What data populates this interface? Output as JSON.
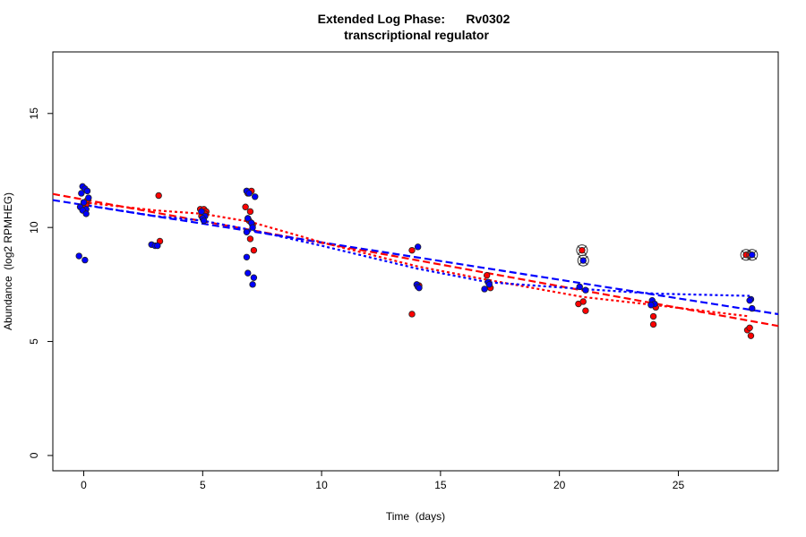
{
  "chart_data": {
    "type": "scatter",
    "title": "Extended Log Phase:      Rv0302",
    "subtitle": "transcriptional regulator",
    "xlabel": "Time  (days)",
    "ylabel": "Abundance  (log2 RPMHEG)",
    "xlim": [
      -1.3,
      29.2
    ],
    "ylim": [
      -0.67,
      17.7
    ],
    "xticks": [
      0,
      5,
      10,
      15,
      20,
      25
    ],
    "yticks": [
      0,
      5,
      10,
      15
    ],
    "grid": false,
    "colors": {
      "red": "#ff0000",
      "blue": "#0000ff"
    },
    "series": [
      {
        "color": "red",
        "points": [
          [
            0.0,
            11.1
          ],
          [
            0.1,
            11.0
          ],
          [
            -0.05,
            10.9
          ],
          [
            0.15,
            11.2
          ],
          [
            3.15,
            11.4
          ],
          [
            3.2,
            9.4
          ],
          [
            4.9,
            10.8
          ],
          [
            5.05,
            10.8
          ],
          [
            5.15,
            10.7
          ],
          [
            4.95,
            10.5
          ],
          [
            5.1,
            10.6
          ],
          [
            6.85,
            11.6
          ],
          [
            7.05,
            11.6
          ],
          [
            6.9,
            11.5
          ],
          [
            6.8,
            10.9
          ],
          [
            7.0,
            10.7
          ],
          [
            6.9,
            10.4
          ],
          [
            7.1,
            10.1
          ],
          [
            7.0,
            9.5
          ],
          [
            7.15,
            9.0
          ],
          [
            6.95,
            10.3
          ],
          [
            13.8,
            9.0
          ],
          [
            14.1,
            7.45
          ],
          [
            13.8,
            6.2
          ],
          [
            16.95,
            7.9
          ],
          [
            17.1,
            7.35
          ],
          [
            20.95,
            9.0
          ],
          [
            20.8,
            6.65
          ],
          [
            21.0,
            6.75
          ],
          [
            21.1,
            6.35
          ],
          [
            24.05,
            6.5
          ],
          [
            23.95,
            6.1
          ],
          [
            23.95,
            5.75
          ],
          [
            27.85,
            8.8
          ],
          [
            27.9,
            5.5
          ],
          [
            28.0,
            5.6
          ],
          [
            28.05,
            5.25
          ]
        ],
        "circled": [
          [
            20.95,
            9.0
          ],
          [
            27.85,
            8.8
          ]
        ]
      },
      {
        "color": "blue",
        "points": [
          [
            -0.05,
            11.8
          ],
          [
            0.05,
            11.7
          ],
          [
            -0.1,
            11.5
          ],
          [
            0.15,
            11.6
          ],
          [
            0.2,
            11.3
          ],
          [
            0.0,
            11.1
          ],
          [
            -0.15,
            10.9
          ],
          [
            0.1,
            10.8
          ],
          [
            -0.05,
            10.75
          ],
          [
            0.1,
            10.6
          ],
          [
            -0.2,
            8.75
          ],
          [
            0.05,
            8.57
          ],
          [
            2.85,
            9.25
          ],
          [
            3.0,
            9.2
          ],
          [
            3.1,
            9.2
          ],
          [
            4.95,
            10.7
          ],
          [
            5.1,
            10.5
          ],
          [
            5.0,
            10.4
          ],
          [
            5.05,
            10.3
          ],
          [
            6.85,
            11.6
          ],
          [
            6.95,
            11.5
          ],
          [
            7.2,
            11.35
          ],
          [
            6.9,
            10.4
          ],
          [
            7.05,
            10.2
          ],
          [
            7.1,
            10.0
          ],
          [
            6.85,
            9.8
          ],
          [
            6.85,
            8.7
          ],
          [
            6.9,
            8.0
          ],
          [
            7.15,
            7.8
          ],
          [
            7.1,
            7.5
          ],
          [
            14.05,
            9.15
          ],
          [
            14.0,
            7.5
          ],
          [
            14.05,
            7.4
          ],
          [
            14.1,
            7.35
          ],
          [
            17.0,
            7.6
          ],
          [
            17.05,
            7.5
          ],
          [
            16.85,
            7.3
          ],
          [
            21.0,
            8.55
          ],
          [
            20.85,
            7.4
          ],
          [
            21.1,
            7.25
          ],
          [
            23.9,
            6.8
          ],
          [
            24.0,
            6.65
          ],
          [
            23.85,
            6.6
          ],
          [
            28.1,
            8.8
          ],
          [
            28.05,
            6.85
          ],
          [
            28.0,
            6.8
          ],
          [
            28.1,
            6.45
          ]
        ],
        "circled": [
          [
            21.0,
            8.55
          ],
          [
            28.1,
            8.8
          ]
        ]
      }
    ],
    "fit_lines": [
      {
        "color": "red",
        "style": "dashed",
        "points": [
          [
            -1.3,
            11.47
          ],
          [
            29.2,
            5.68
          ]
        ]
      },
      {
        "color": "blue",
        "style": "dashed",
        "points": [
          [
            -1.3,
            11.2
          ],
          [
            29.2,
            6.2
          ]
        ]
      },
      {
        "color": "red",
        "style": "dotted",
        "points": [
          [
            0,
            11.1
          ],
          [
            3,
            10.75
          ],
          [
            5,
            10.6
          ],
          [
            7,
            10.25
          ],
          [
            10,
            9.35
          ],
          [
            14,
            8.3
          ],
          [
            17,
            7.7
          ],
          [
            21,
            6.95
          ],
          [
            24,
            6.6
          ],
          [
            28,
            6.1
          ]
        ]
      },
      {
        "color": "blue",
        "style": "dotted",
        "points": [
          [
            0,
            11.0
          ],
          [
            3,
            10.5
          ],
          [
            5,
            10.3
          ],
          [
            7,
            9.9
          ],
          [
            10,
            9.2
          ],
          [
            14,
            8.2
          ],
          [
            17,
            7.6
          ],
          [
            21,
            7.3
          ],
          [
            24,
            7.1
          ],
          [
            28,
            7.0
          ]
        ]
      }
    ]
  }
}
